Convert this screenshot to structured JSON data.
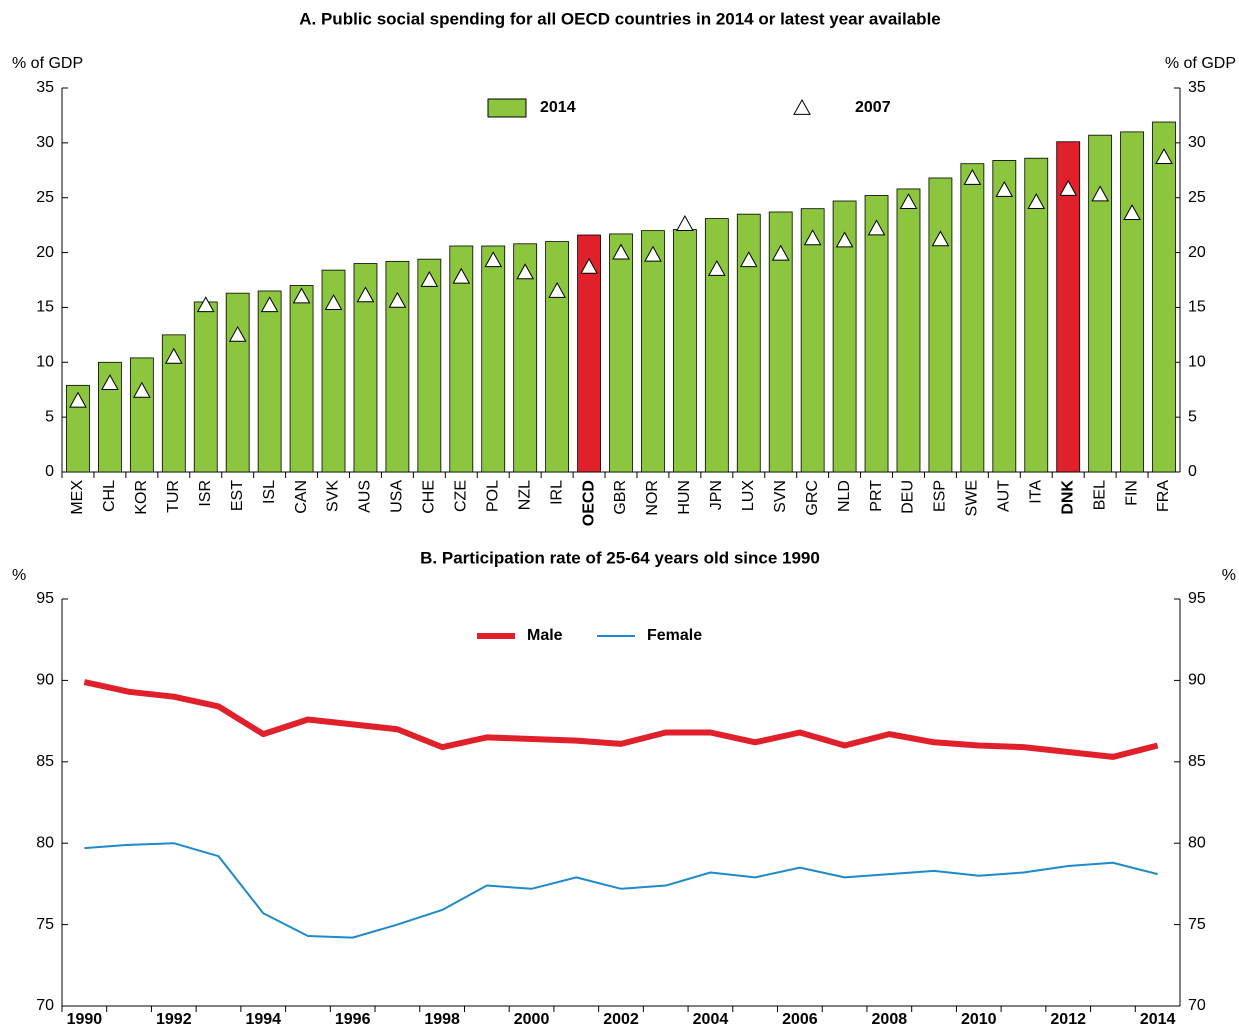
{
  "chart_data": [
    {
      "type": "bar",
      "title": "A. Public social spending for all OECD countries in 2014 or latest year available",
      "y_label": "% of GDP",
      "y2_label": "% of GDP",
      "categories": [
        "MEX",
        "CHL",
        "KOR",
        "TUR",
        "ISR",
        "EST",
        "ISL",
        "CAN",
        "SVK",
        "AUS",
        "USA",
        "CHE",
        "CZE",
        "POL",
        "NZL",
        "IRL",
        "OECD",
        "GBR",
        "NOR",
        "HUN",
        "JPN",
        "LUX",
        "SVN",
        "GRC",
        "NLD",
        "PRT",
        "DEU",
        "ESP",
        "SWE",
        "AUT",
        "ITA",
        "DNK",
        "BEL",
        "FIN",
        "FRA"
      ],
      "series": [
        {
          "name": "2014",
          "color": "#8cc63f",
          "values": [
            7.9,
            10.0,
            10.4,
            12.5,
            15.5,
            16.3,
            16.5,
            17.0,
            18.4,
            19.0,
            19.2,
            19.4,
            20.6,
            20.6,
            20.8,
            21.0,
            21.6,
            21.7,
            22.0,
            22.1,
            23.1,
            23.5,
            23.7,
            24.0,
            24.7,
            25.2,
            25.8,
            26.8,
            28.1,
            28.4,
            28.6,
            30.1,
            30.7,
            31.0,
            31.9
          ]
        },
        {
          "name": "2007",
          "color": "#ffffff",
          "marker": "triangle",
          "values": [
            6.5,
            8.1,
            7.4,
            10.5,
            15.2,
            12.5,
            15.2,
            16.0,
            15.4,
            16.1,
            15.6,
            17.5,
            17.8,
            19.3,
            18.2,
            16.5,
            18.7,
            20.0,
            19.8,
            22.6,
            18.5,
            19.3,
            19.9,
            21.3,
            21.1,
            22.2,
            24.6,
            21.2,
            26.8,
            25.7,
            24.6,
            25.8,
            25.3,
            23.6,
            28.7
          ]
        }
      ],
      "highlight": [
        16,
        31
      ],
      "highlight_color": "#e0202a",
      "ylim": [
        0,
        35
      ],
      "yticks": [
        0,
        5,
        10,
        15,
        20,
        25,
        30,
        35
      ],
      "y2lim": [
        0,
        35
      ],
      "y2ticks": [
        0,
        5,
        10,
        15,
        20,
        25,
        30,
        35
      ],
      "grid": false
    },
    {
      "type": "line",
      "title": "B. Participation rate of 25-64 years old since 1990",
      "y_label": "%",
      "y2_label": "%",
      "x": [
        1990,
        1991,
        1992,
        1993,
        1994,
        1995,
        1996,
        1997,
        1998,
        1999,
        2000,
        2001,
        2002,
        2003,
        2004,
        2005,
        2006,
        2007,
        2008,
        2009,
        2010,
        2011,
        2012,
        2013,
        2014
      ],
      "series": [
        {
          "name": "Male",
          "color": "#e0202a",
          "width": 6,
          "values": [
            89.9,
            89.3,
            89.0,
            88.4,
            86.7,
            87.6,
            87.3,
            87.0,
            85.9,
            86.5,
            86.4,
            86.3,
            86.1,
            86.8,
            86.8,
            86.2,
            86.8,
            86.0,
            86.7,
            86.2,
            86.0,
            85.9,
            85.6,
            85.3,
            86.0
          ]
        },
        {
          "name": "Female",
          "color": "#1f8ac9",
          "width": 2,
          "values": [
            79.7,
            79.9,
            80.0,
            79.2,
            75.7,
            74.3,
            74.2,
            75.0,
            75.9,
            77.4,
            77.2,
            77.9,
            77.2,
            77.4,
            78.2,
            77.9,
            78.5,
            77.9,
            78.1,
            78.3,
            78.0,
            78.2,
            78.6,
            78.8,
            78.1
          ]
        }
      ],
      "xlim": [
        1989.5,
        2014.5
      ],
      "xticks": [
        1990,
        1992,
        1994,
        1996,
        1998,
        2000,
        2002,
        2004,
        2006,
        2008,
        2010,
        2012,
        2014
      ],
      "ylim": [
        70,
        95
      ],
      "yticks": [
        70,
        75,
        80,
        85,
        90,
        95
      ],
      "y2lim": [
        70,
        95
      ],
      "y2ticks": [
        70,
        75,
        80,
        85,
        90,
        95
      ],
      "grid": false
    }
  ]
}
